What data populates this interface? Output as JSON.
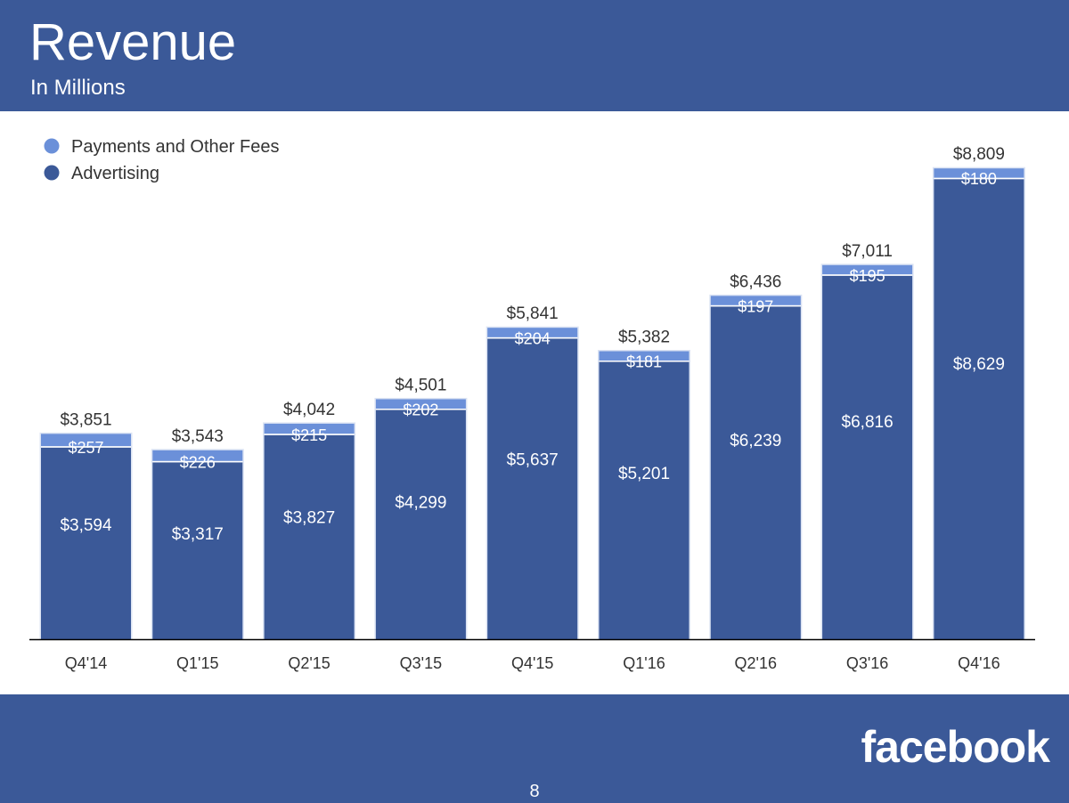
{
  "slide": {
    "title": "Revenue",
    "subtitle": "In Millions",
    "logo": "facebook",
    "page_number": "8"
  },
  "colors": {
    "header_background": "#3b5998",
    "advertising": "#3b5998",
    "payments": "#6b90d9",
    "text": "#333333",
    "axis": "#000000"
  },
  "chart_data": {
    "type": "bar",
    "stacked": true,
    "categories": [
      "Q4'14",
      "Q1'15",
      "Q2'15",
      "Q3'15",
      "Q4'15",
      "Q1'16",
      "Q2'16",
      "Q3'16",
      "Q4'16"
    ],
    "series": [
      {
        "name": "Advertising",
        "values": [
          3594,
          3317,
          3827,
          4299,
          5637,
          5201,
          6239,
          6816,
          8629
        ],
        "labels": [
          "$3,594",
          "$3,317",
          "$3,827",
          "$4,299",
          "$5,637",
          "$5,201",
          "$6,239",
          "$6,816",
          "$8,629"
        ]
      },
      {
        "name": "Payments and Other Fees",
        "values": [
          257,
          226,
          215,
          202,
          204,
          181,
          197,
          195,
          180
        ],
        "labels": [
          "$257",
          "$226",
          "$215",
          "$202",
          "$204",
          "$181",
          "$197",
          "$195",
          "$180"
        ]
      }
    ],
    "totals": [
      3851,
      3543,
      4042,
      4501,
      5841,
      5382,
      6436,
      7011,
      8809
    ],
    "total_labels": [
      "$3,851",
      "$3,543",
      "$4,042",
      "$4,501",
      "$5,841",
      "$5,382",
      "$6,436",
      "$7,011",
      "$8,809"
    ],
    "legend": {
      "placement": "top-left",
      "entries": [
        "Payments and Other Fees",
        "Advertising"
      ]
    },
    "ylim": [
      0,
      9000
    ],
    "grid": false,
    "xlabel": "",
    "ylabel": ""
  }
}
